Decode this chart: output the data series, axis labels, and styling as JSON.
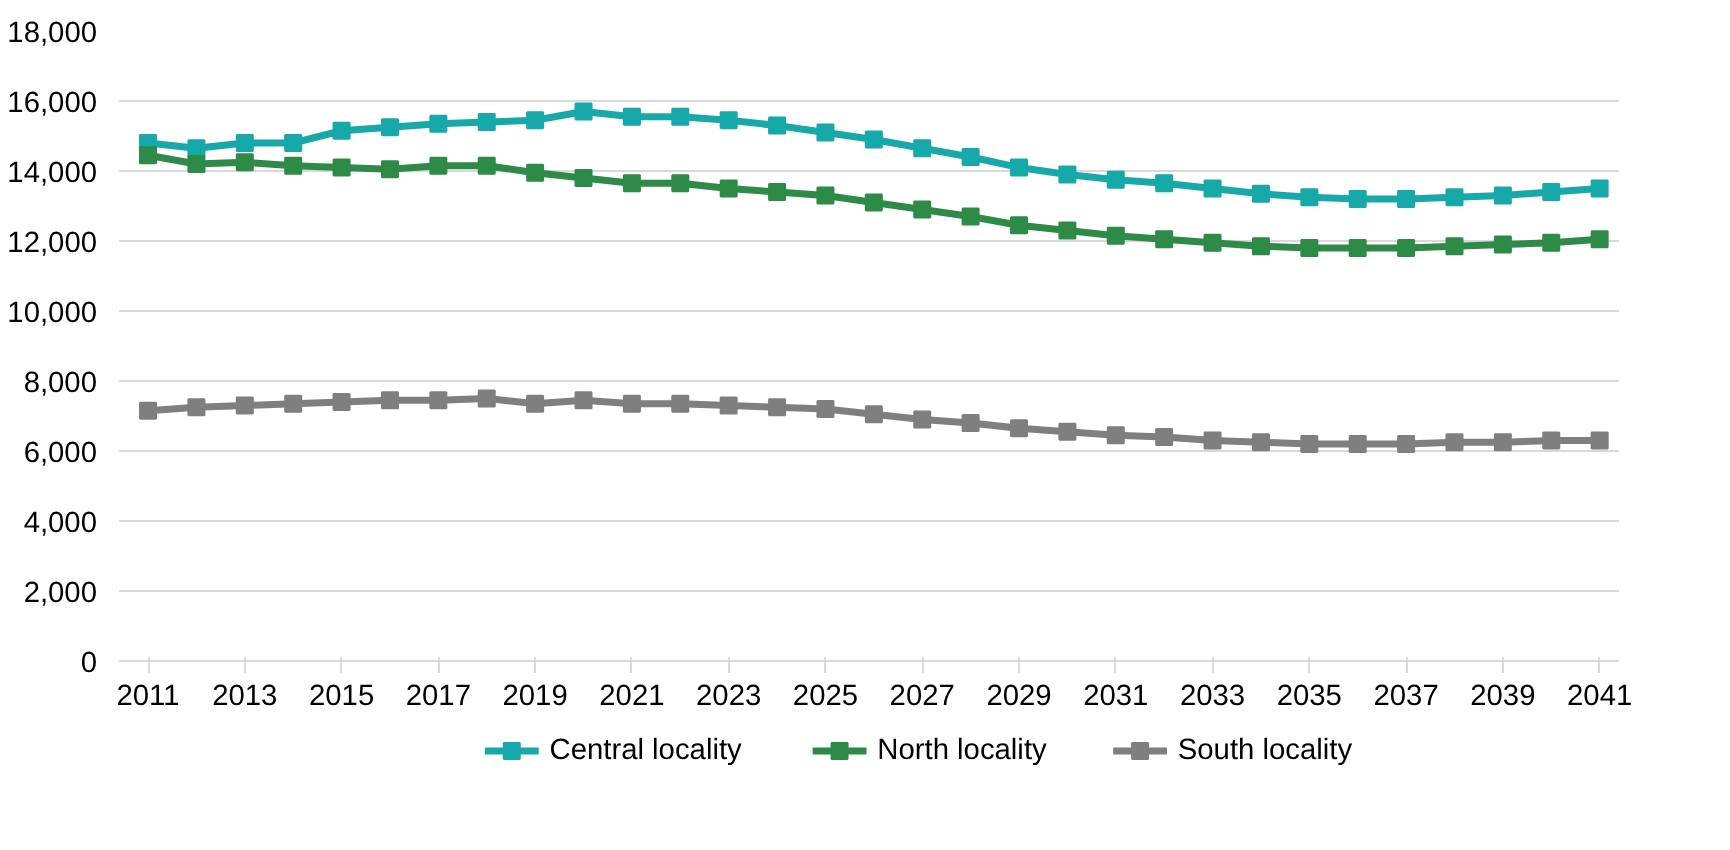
{
  "chart_data": {
    "type": "line",
    "marker": "square",
    "grid": "y",
    "legend": "bottom",
    "x": [
      2011,
      2012,
      2013,
      2014,
      2015,
      2016,
      2017,
      2018,
      2019,
      2020,
      2021,
      2022,
      2023,
      2024,
      2025,
      2026,
      2027,
      2028,
      2029,
      2030,
      2031,
      2032,
      2033,
      2034,
      2035,
      2036,
      2037,
      2038,
      2039,
      2040,
      2041
    ],
    "xlim": [
      2010.4,
      2041.4
    ],
    "xticks": [
      2011,
      2013,
      2015,
      2017,
      2019,
      2021,
      2023,
      2025,
      2027,
      2029,
      2031,
      2033,
      2035,
      2037,
      2039,
      2041
    ],
    "ylim": [
      0,
      18000
    ],
    "yticks": [
      {
        "value": 0,
        "label": "0"
      },
      {
        "value": 2000,
        "label": "2,000"
      },
      {
        "value": 4000,
        "label": "4,000"
      },
      {
        "value": 6000,
        "label": "6,000"
      },
      {
        "value": 8000,
        "label": "8,000"
      },
      {
        "value": 10000,
        "label": "10,000"
      },
      {
        "value": 12000,
        "label": "12,000"
      },
      {
        "value": 14000,
        "label": "14,000"
      },
      {
        "value": 16000,
        "label": "16,000"
      },
      {
        "value": 18000,
        "label": "18,000"
      }
    ],
    "series": [
      {
        "name": "Central locality",
        "color": "#17a9a9",
        "values": [
          14800,
          14650,
          14800,
          14800,
          15150,
          15250,
          15350,
          15400,
          15450,
          15700,
          15550,
          15550,
          15450,
          15300,
          15100,
          14900,
          14650,
          14400,
          14100,
          13900,
          13750,
          13650,
          13500,
          13350,
          13250,
          13200,
          13200,
          13250,
          13300,
          13400,
          13500
        ]
      },
      {
        "name": "North locality",
        "color": "#2e8b47",
        "values": [
          14450,
          14200,
          14250,
          14150,
          14100,
          14050,
          14150,
          14150,
          13950,
          13800,
          13650,
          13650,
          13500,
          13400,
          13300,
          13100,
          12900,
          12700,
          12450,
          12300,
          12150,
          12050,
          11950,
          11850,
          11800,
          11800,
          11800,
          11850,
          11900,
          11950,
          12050
        ]
      },
      {
        "name": "South locality",
        "color": "#7f7f7f",
        "values": [
          7150,
          7250,
          7300,
          7350,
          7400,
          7450,
          7450,
          7500,
          7350,
          7450,
          7350,
          7350,
          7300,
          7250,
          7200,
          7050,
          6900,
          6800,
          6650,
          6550,
          6450,
          6400,
          6300,
          6250,
          6200,
          6200,
          6200,
          6250,
          6250,
          6300,
          6300
        ]
      }
    ]
  }
}
